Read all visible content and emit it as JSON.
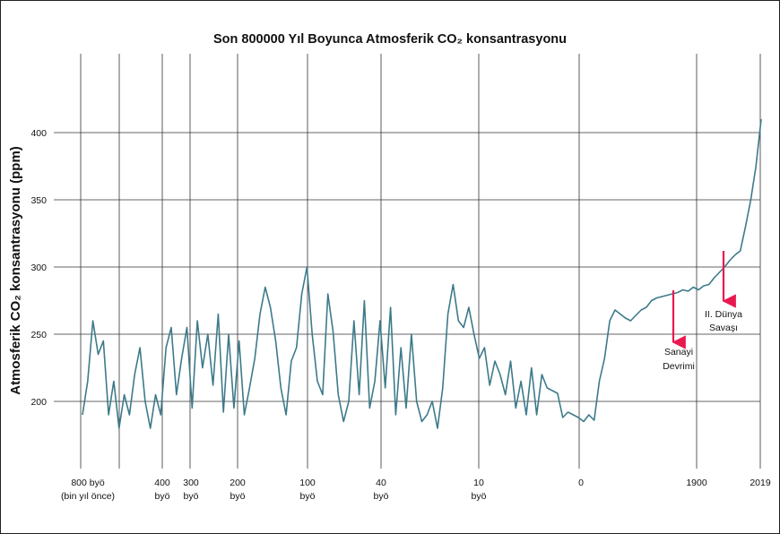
{
  "chart_data": {
    "type": "line",
    "title": "Son 800000 Yıl Boyunca Atmosferik CO₂ konsantrasyonu",
    "ylabel": "Atmosferik CO₂ konsantrasyonu (ppm)",
    "xlabel": "",
    "ylim": [
      165,
      420
    ],
    "yticks": [
      200,
      250,
      300,
      350,
      400
    ],
    "grid": true,
    "xticks": [
      {
        "id": "800k",
        "line1": "800 byö",
        "line2": "(bin yıl önce)"
      },
      {
        "id": "400k",
        "line1": "400",
        "line2": "byö"
      },
      {
        "id": "300k",
        "line1": "300",
        "line2": "byö"
      },
      {
        "id": "200k",
        "line1": "200",
        "line2": "byö"
      },
      {
        "id": "100k",
        "line1": "100",
        "line2": "byö"
      },
      {
        "id": "40k",
        "line1": "40",
        "line2": "byö"
      },
      {
        "id": "10k",
        "line1": "10",
        "line2": "byö"
      },
      {
        "id": "0",
        "line1": "0",
        "line2": ""
      },
      {
        "id": "1900",
        "line1": "1900",
        "line2": ""
      },
      {
        "id": "2019",
        "line1": "2019",
        "line2": ""
      }
    ],
    "line_color": "#3d7a8a",
    "arrow_color": "#e8194f",
    "series": [
      {
        "values": [
          190,
          215,
          260,
          235,
          245,
          190,
          215,
          180,
          205,
          190,
          220,
          240,
          200,
          180,
          205,
          190,
          240,
          255,
          205,
          232,
          255,
          195,
          260,
          225,
          250,
          212,
          265,
          192,
          250,
          195,
          245,
          190,
          210,
          232,
          265,
          285,
          270,
          245,
          210,
          190,
          230,
          240,
          280,
          300,
          250,
          215,
          205,
          280,
          252,
          205,
          185,
          200,
          260,
          205,
          275,
          195,
          215,
          260,
          210,
          270,
          190,
          240,
          195,
          250,
          200,
          185,
          190,
          200,
          180,
          210,
          265,
          287,
          260,
          255,
          270,
          250,
          232,
          240,
          212,
          230,
          220,
          205,
          230,
          195,
          215,
          190,
          225,
          190,
          220,
          210,
          208,
          206,
          188,
          192,
          190,
          188,
          185,
          190,
          186,
          215,
          232,
          260,
          268,
          265,
          262,
          260,
          264,
          268,
          270,
          275,
          277,
          278,
          279,
          280,
          281,
          283,
          282,
          285,
          283,
          286,
          287,
          292,
          296,
          300,
          305,
          309,
          312,
          330,
          350,
          375,
          410
        ]
      }
    ],
    "annotations": [
      {
        "id": "sanayi",
        "line1": "Sanayi",
        "line2": "Devrimi"
      },
      {
        "id": "savas",
        "line1": "II. Dünya",
        "line2": "Savaşı"
      }
    ]
  }
}
